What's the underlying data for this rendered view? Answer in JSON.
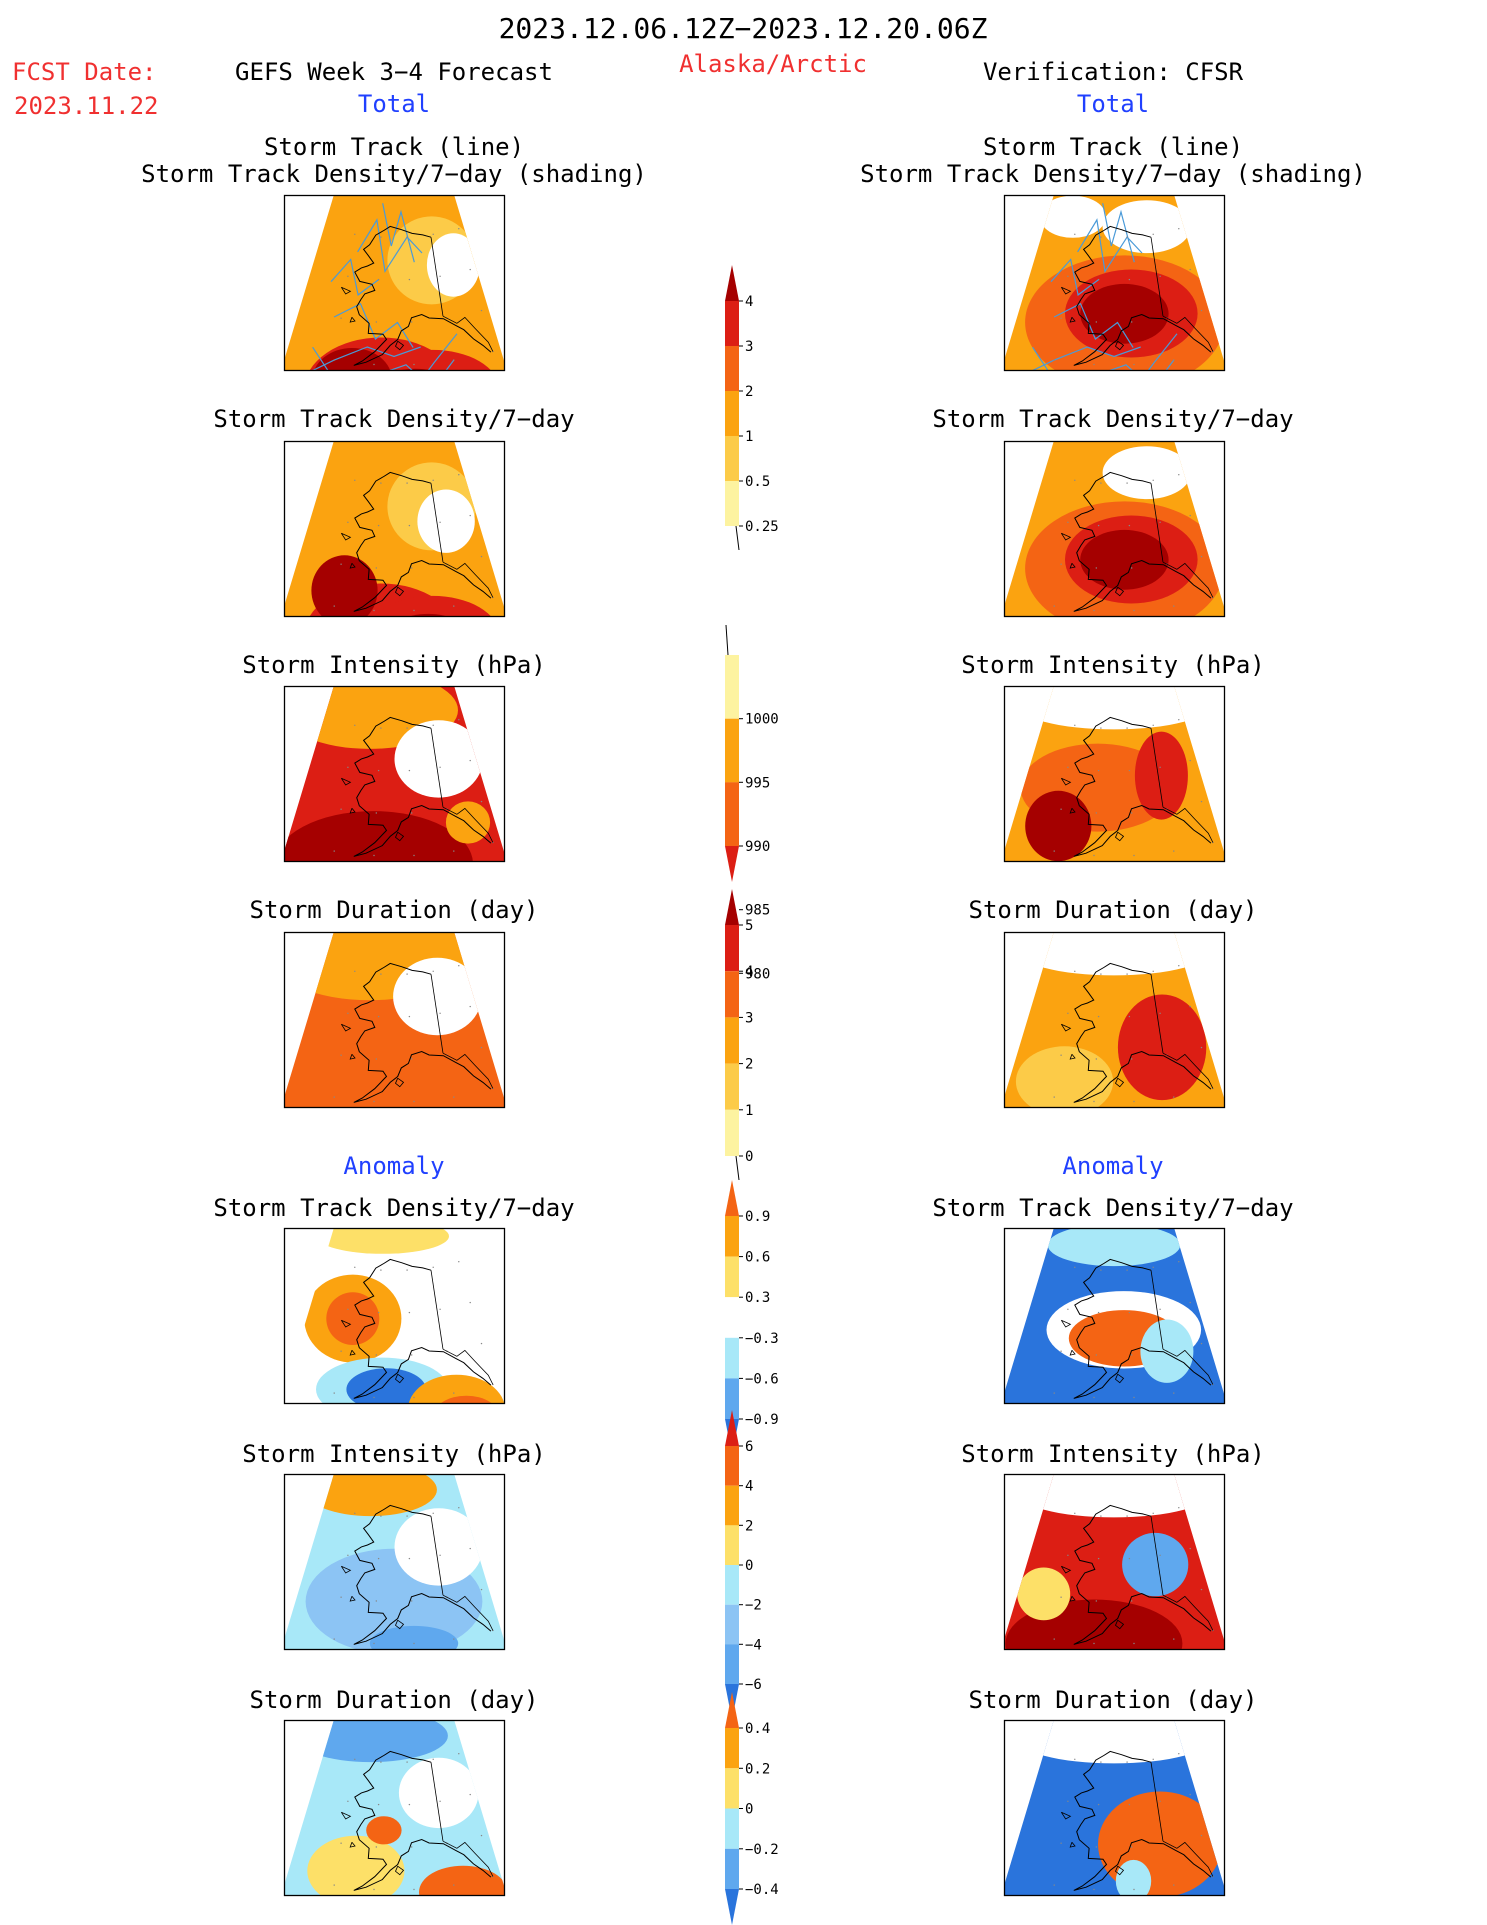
{
  "header": {
    "period": "2023.12.06.12Z−2023.12.20.06Z",
    "fcst_label": "FCST Date:",
    "fcst_date": "2023.11.22",
    "forecast_title": "GEFS Week 3−4 Forecast",
    "region": "Alaska/Arctic",
    "verification": "Verification: CFSR",
    "total_label": "Total",
    "anomaly_label": "Anomaly"
  },
  "panel_titles": {
    "track_line": "Storm Track (line)",
    "track_shading": "Storm Track Density/7−day (shading)",
    "density": "Storm Track Density/7−day",
    "intensity": "Storm Intensity (hPa)",
    "duration": "Storm Duration (day)"
  },
  "colors": {
    "title_red": "#f03030",
    "label_blue": "#2040ff",
    "track_blue": "#4a9ad8",
    "coast": "#000000"
  },
  "colorbars": [
    {
      "name": "density-total",
      "labels": [
        "4",
        "3",
        "2",
        "1",
        "0.5",
        "0.25"
      ],
      "colors": [
        "#a50000",
        "#dc1e14",
        "#f46414",
        "#fba310",
        "#fccb48",
        "#fdf3a0"
      ],
      "top_arrow": true,
      "bottom_arrow": false
    },
    {
      "name": "intensity-total",
      "labels": [
        "1000",
        "995",
        "990",
        "985",
        "980"
      ],
      "colors": [
        "#fdf3a0",
        "#fba310",
        "#f46414",
        "#dc1e14"
      ],
      "top_arrow": false,
      "bottom_arrow": true
    },
    {
      "name": "duration-total",
      "labels": [
        "5",
        "4",
        "3",
        "2",
        "1",
        "0"
      ],
      "colors": [
        "#a50000",
        "#dc1e14",
        "#f46414",
        "#fba310",
        "#fccb48",
        "#fdf3a0"
      ],
      "top_arrow": true,
      "bottom_arrow": false
    },
    {
      "name": "density-anomaly",
      "labels": [
        "0.9",
        "0.6",
        "0.3",
        "−0.3",
        "−0.6",
        "−0.9"
      ],
      "colors": [
        "#f46414",
        "#fba310",
        "#fde068",
        "#ffffff",
        "#a8e8f8",
        "#5fa8ee",
        "#2a74dc"
      ],
      "top_arrow": true,
      "bottom_arrow": true
    },
    {
      "name": "intensity-anomaly",
      "labels": [
        "6",
        "4",
        "2",
        "0",
        "−2",
        "−4",
        "−6"
      ],
      "colors": [
        "#dc1e14",
        "#f46414",
        "#fba310",
        "#fde068",
        "#a8e8f8",
        "#8cc4f4",
        "#5fa8ee",
        "#2a74dc"
      ],
      "top_arrow": true,
      "bottom_arrow": true
    },
    {
      "name": "duration-anomaly",
      "labels": [
        "0.4",
        "0.2",
        "0",
        "−0.2",
        "−0.4"
      ],
      "colors": [
        "#f46414",
        "#fba310",
        "#fde068",
        "#a8e8f8",
        "#5fa8ee",
        "#2a74dc"
      ],
      "top_arrow": true,
      "bottom_arrow": true
    }
  ],
  "maps": [
    {
      "name": "forecast-storm-track",
      "base": "#fba310",
      "tracks": true,
      "blobs": [
        {
          "lon": -158,
          "lat": 52,
          "rx": 0.35,
          "ry": 0.3,
          "color": "#dc1e14"
        },
        {
          "lon": -146,
          "lat": 52,
          "rx": 0.3,
          "ry": 0.22,
          "color": "#dc1e14"
        },
        {
          "lon": -165,
          "lat": 53,
          "rx": 0.18,
          "ry": 0.18,
          "color": "#a50000"
        },
        {
          "lon": -150,
          "lat": 52,
          "rx": 0.18,
          "ry": 0.12,
          "color": "#a50000"
        },
        {
          "lon": -142,
          "lat": 67,
          "rx": 0.2,
          "ry": 0.25,
          "color": "#fccb48"
        },
        {
          "lon": -135,
          "lat": 66,
          "rx": 0.12,
          "ry": 0.18,
          "color": "#ffffff"
        }
      ]
    },
    {
      "name": "verification-storm-track",
      "base": "#fba310",
      "tracks": true,
      "blobs": [
        {
          "lon": -152,
          "lat": 60,
          "rx": 0.45,
          "ry": 0.38,
          "color": "#f46414"
        },
        {
          "lon": -150,
          "lat": 61,
          "rx": 0.3,
          "ry": 0.25,
          "color": "#dc1e14"
        },
        {
          "lon": -152,
          "lat": 61,
          "rx": 0.2,
          "ry": 0.17,
          "color": "#a50000"
        },
        {
          "lon": -142,
          "lat": 71,
          "rx": 0.2,
          "ry": 0.15,
          "color": "#ffffff"
        },
        {
          "lon": -172,
          "lat": 72,
          "rx": 0.15,
          "ry": 0.12,
          "color": "#ffffff"
        }
      ]
    },
    {
      "name": "forecast-track-density",
      "base": "#fba310",
      "tracks": false,
      "blobs": [
        {
          "lon": -158,
          "lat": 52,
          "rx": 0.35,
          "ry": 0.3,
          "color": "#dc1e14"
        },
        {
          "lon": -146,
          "lat": 52,
          "rx": 0.3,
          "ry": 0.22,
          "color": "#dc1e14"
        },
        {
          "lon": -168,
          "lat": 57,
          "rx": 0.15,
          "ry": 0.2,
          "color": "#a50000"
        },
        {
          "lon": -147,
          "lat": 52,
          "rx": 0.18,
          "ry": 0.12,
          "color": "#a50000"
        },
        {
          "lon": -142,
          "lat": 67,
          "rx": 0.2,
          "ry": 0.25,
          "color": "#fccb48"
        },
        {
          "lon": -138,
          "lat": 65,
          "rx": 0.13,
          "ry": 0.18,
          "color": "#ffffff"
        }
      ]
    },
    {
      "name": "verification-track-density",
      "base": "#fba310",
      "tracks": false,
      "blobs": [
        {
          "lon": -152,
          "lat": 60,
          "rx": 0.45,
          "ry": 0.38,
          "color": "#f46414"
        },
        {
          "lon": -150,
          "lat": 61,
          "rx": 0.3,
          "ry": 0.25,
          "color": "#dc1e14"
        },
        {
          "lon": -152,
          "lat": 61,
          "rx": 0.2,
          "ry": 0.17,
          "color": "#a50000"
        },
        {
          "lon": -142,
          "lat": 71,
          "rx": 0.2,
          "ry": 0.15,
          "color": "#ffffff"
        }
      ]
    },
    {
      "name": "forecast-storm-intensity",
      "base": "#dc1e14",
      "tracks": false,
      "blobs": [
        {
          "lon": -165,
          "lat": 72,
          "rx": 0.4,
          "ry": 0.22,
          "color": "#fba310"
        },
        {
          "lon": -160,
          "lat": 54,
          "rx": 0.45,
          "ry": 0.3,
          "color": "#a50000"
        },
        {
          "lon": -140,
          "lat": 66,
          "rx": 0.2,
          "ry": 0.22,
          "color": "#ffffff"
        },
        {
          "lon": -135,
          "lat": 58,
          "rx": 0.1,
          "ry": 0.12,
          "color": "#fba310"
        }
      ]
    },
    {
      "name": "verification-storm-intensity",
      "base": "#fba310",
      "tracks": false,
      "blobs": [
        {
          "lon": -160,
          "lat": 63,
          "rx": 0.35,
          "ry": 0.25,
          "color": "#f46414"
        },
        {
          "lon": -170,
          "lat": 58,
          "rx": 0.15,
          "ry": 0.2,
          "color": "#a50000"
        },
        {
          "lon": -140,
          "lat": 64,
          "rx": 0.12,
          "ry": 0.25,
          "color": "#dc1e14"
        },
        {
          "lon": -155,
          "lat": 73,
          "rx": 0.45,
          "ry": 0.15,
          "color": "#ffffff"
        }
      ]
    },
    {
      "name": "forecast-storm-duration",
      "base": "#f46414",
      "tracks": false,
      "blobs": [
        {
          "lon": -165,
          "lat": 72,
          "rx": 0.45,
          "ry": 0.25,
          "color": "#fba310"
        },
        {
          "lon": -140,
          "lat": 67,
          "rx": 0.2,
          "ry": 0.22,
          "color": "#ffffff"
        }
      ]
    },
    {
      "name": "verification-storm-duration",
      "base": "#fba310",
      "tracks": false,
      "blobs": [
        {
          "lon": -168,
          "lat": 57,
          "rx": 0.22,
          "ry": 0.2,
          "color": "#fccb48"
        },
        {
          "lon": -141,
          "lat": 61,
          "rx": 0.2,
          "ry": 0.3,
          "color": "#dc1e14"
        },
        {
          "lon": -155,
          "lat": 73,
          "rx": 0.45,
          "ry": 0.15,
          "color": "#ffffff"
        }
      ]
    },
    {
      "name": "forecast-anomaly-density",
      "base": "#ffffff",
      "tracks": false,
      "blobs": [
        {
          "lon": -168,
          "lat": 64,
          "rx": 0.22,
          "ry": 0.25,
          "color": "#fba310"
        },
        {
          "lon": -168,
          "lat": 64,
          "rx": 0.12,
          "ry": 0.15,
          "color": "#f46414"
        },
        {
          "lon": -158,
          "lat": 56,
          "rx": 0.3,
          "ry": 0.18,
          "color": "#a8e8f8"
        },
        {
          "lon": -157,
          "lat": 56,
          "rx": 0.18,
          "ry": 0.12,
          "color": "#2a74dc"
        },
        {
          "lon": -140,
          "lat": 53,
          "rx": 0.22,
          "ry": 0.2,
          "color": "#fba310"
        },
        {
          "lon": -138,
          "lat": 52,
          "rx": 0.15,
          "ry": 0.12,
          "color": "#f46414"
        },
        {
          "lon": -160,
          "lat": 74,
          "rx": 0.3,
          "ry": 0.1,
          "color": "#fde068"
        }
      ]
    },
    {
      "name": "verification-anomaly-density",
      "base": "#2a74dc",
      "tracks": false,
      "blobs": [
        {
          "lon": -152,
          "lat": 63,
          "rx": 0.35,
          "ry": 0.22,
          "color": "#ffffff"
        },
        {
          "lon": -152,
          "lat": 62,
          "rx": 0.25,
          "ry": 0.16,
          "color": "#f46414"
        },
        {
          "lon": -155,
          "lat": 73,
          "rx": 0.3,
          "ry": 0.12,
          "color": "#a8e8f8"
        },
        {
          "lon": -140,
          "lat": 60,
          "rx": 0.12,
          "ry": 0.18,
          "color": "#a8e8f8"
        }
      ]
    },
    {
      "name": "forecast-anomaly-intensity",
      "base": "#a8e8f8",
      "tracks": false,
      "blobs": [
        {
          "lon": -155,
          "lat": 60,
          "rx": 0.4,
          "ry": 0.3,
          "color": "#8cc4f4"
        },
        {
          "lon": -165,
          "lat": 73,
          "rx": 0.3,
          "ry": 0.15,
          "color": "#fba310"
        },
        {
          "lon": -140,
          "lat": 66,
          "rx": 0.2,
          "ry": 0.22,
          "color": "#ffffff"
        },
        {
          "lon": -150,
          "lat": 55,
          "rx": 0.2,
          "ry": 0.1,
          "color": "#5fa8ee"
        }
      ]
    },
    {
      "name": "verification-anomaly-intensity",
      "base": "#dc1e14",
      "tracks": false,
      "blobs": [
        {
          "lon": -160,
          "lat": 55,
          "rx": 0.4,
          "ry": 0.25,
          "color": "#a50000"
        },
        {
          "lon": -142,
          "lat": 64,
          "rx": 0.15,
          "ry": 0.18,
          "color": "#5fa8ee"
        },
        {
          "lon": -175,
          "lat": 60,
          "rx": 0.12,
          "ry": 0.15,
          "color": "#fde068"
        },
        {
          "lon": -155,
          "lat": 73,
          "rx": 0.45,
          "ry": 0.15,
          "color": "#ffffff"
        }
      ]
    },
    {
      "name": "forecast-anomaly-duration",
      "base": "#a8e8f8",
      "tracks": false,
      "blobs": [
        {
          "lon": -165,
          "lat": 73,
          "rx": 0.35,
          "ry": 0.15,
          "color": "#5fa8ee"
        },
        {
          "lon": -165,
          "lat": 57,
          "rx": 0.22,
          "ry": 0.2,
          "color": "#fde068"
        },
        {
          "lon": -158,
          "lat": 62,
          "rx": 0.08,
          "ry": 0.08,
          "color": "#f46414"
        },
        {
          "lon": -138,
          "lat": 54,
          "rx": 0.2,
          "ry": 0.15,
          "color": "#f46414"
        },
        {
          "lon": -140,
          "lat": 66,
          "rx": 0.18,
          "ry": 0.2,
          "color": "#ffffff"
        }
      ]
    },
    {
      "name": "verification-anomaly-duration",
      "base": "#2a74dc",
      "tracks": false,
      "blobs": [
        {
          "lon": -142,
          "lat": 60,
          "rx": 0.28,
          "ry": 0.3,
          "color": "#f46414"
        },
        {
          "lon": -150,
          "lat": 56,
          "rx": 0.08,
          "ry": 0.12,
          "color": "#a8e8f8"
        },
        {
          "lon": -155,
          "lat": 73,
          "rx": 0.45,
          "ry": 0.15,
          "color": "#ffffff"
        }
      ]
    }
  ]
}
